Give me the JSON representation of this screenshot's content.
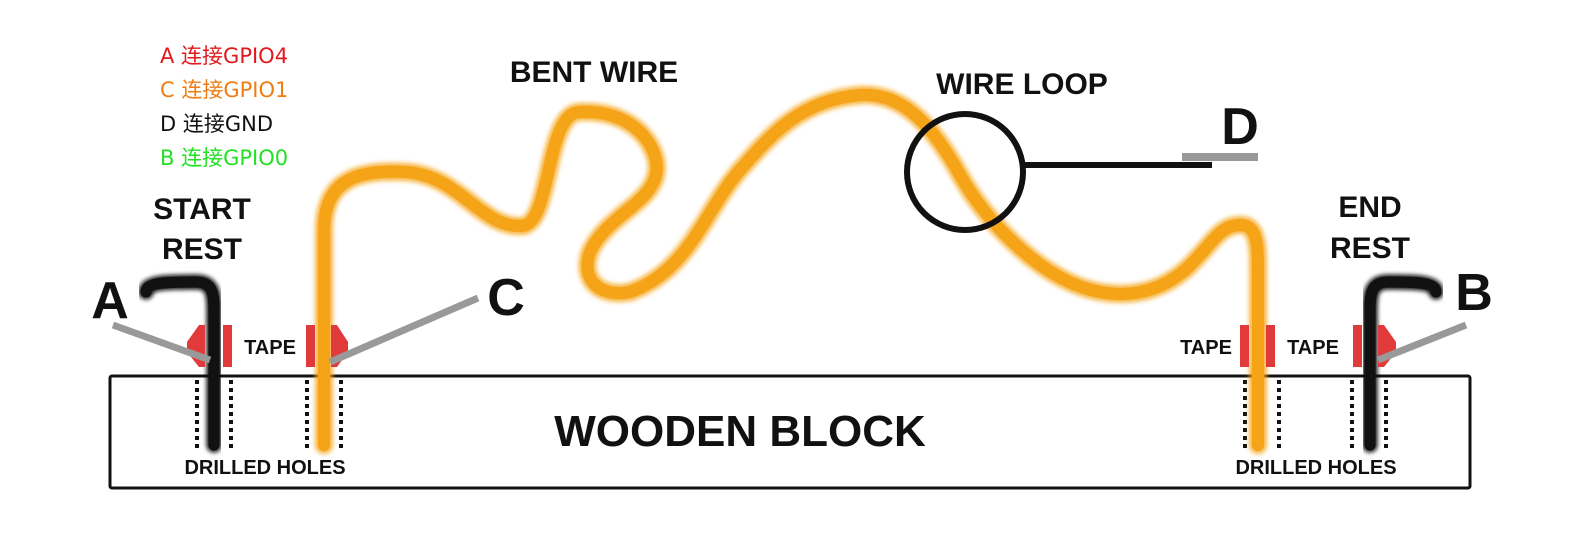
{
  "legend": [
    {
      "text": "A 连接GPIO4",
      "color": "#e0191c"
    },
    {
      "text": "C 连接GPIO1",
      "color": "#ef7d12"
    },
    {
      "text": "D 连接GND",
      "color": "#111111"
    },
    {
      "text": "B 连接GPIO0",
      "color": "#22e022"
    }
  ],
  "labels": {
    "bent_wire": "BENT WIRE",
    "wire_loop": "WIRE LOOP",
    "start_rest_1": "START",
    "start_rest_2": "REST",
    "end_rest_1": "END",
    "end_rest_2": "REST",
    "tape": "TAPE",
    "wooden_block": "WOODEN BLOCK",
    "drilled_holes": "DRILLED HOLES",
    "point_a": "A",
    "point_b": "B",
    "point_c": "C",
    "point_d": "D"
  },
  "colors": {
    "wire": "#f5a418",
    "tape": "#e03a3a",
    "connector": "#999999",
    "ink": "#111111"
  }
}
